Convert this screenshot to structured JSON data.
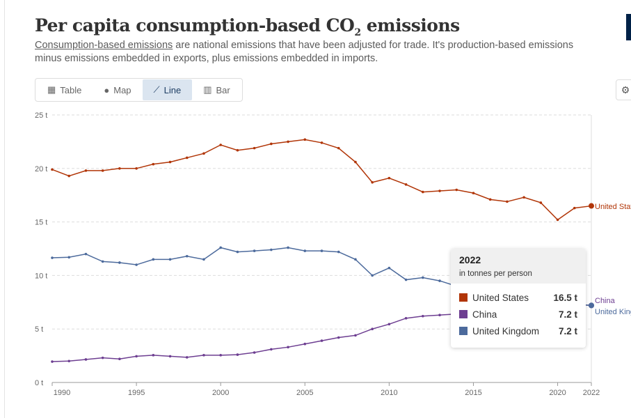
{
  "header": {
    "title_main": "Per capita consumption-based CO",
    "title_sub": "2",
    "title_end": " emissions",
    "subtitle_link": "Consumption-based emissions",
    "subtitle_rest": " are national emissions that have been adjusted for trade. It's production-based emissions minus emissions embedded in exports, plus emissions embedded in imports."
  },
  "tabs": [
    {
      "label": "Table",
      "icon": "table-icon"
    },
    {
      "label": "Map",
      "icon": "globe-icon"
    },
    {
      "label": "Line",
      "icon": "line-chart-icon",
      "active": true
    },
    {
      "label": "Bar",
      "icon": "bar-chart-icon"
    }
  ],
  "settings_icon": "gear-icon",
  "tooltip": {
    "year": "2022",
    "unit": "in tonnes per person",
    "rows": [
      {
        "name": "United States",
        "value": "16.5 t",
        "color": "#b13507"
      },
      {
        "name": "China",
        "value": "7.2 t",
        "color": "#6d3e91"
      },
      {
        "name": "United Kingdom",
        "value": "7.2 t",
        "color": "#4c6a9c"
      }
    ]
  },
  "chart_data": {
    "type": "line",
    "title": "Per capita consumption-based CO2 emissions",
    "ylabel": "",
    "xlabel": "",
    "ylim": [
      0,
      25
    ],
    "xlim": [
      1990,
      2022
    ],
    "grid": true,
    "unit": "t",
    "yticks": [
      "0 t",
      "5 t",
      "10 t",
      "15 t",
      "20 t",
      "25 t"
    ],
    "xticks": [
      "1990",
      "1995",
      "2000",
      "2005",
      "2010",
      "2015",
      "2020",
      "2022"
    ],
    "x": [
      1990,
      1991,
      1992,
      1993,
      1994,
      1995,
      1996,
      1997,
      1998,
      1999,
      2000,
      2001,
      2002,
      2003,
      2004,
      2005,
      2006,
      2007,
      2008,
      2009,
      2010,
      2011,
      2012,
      2013,
      2014,
      2015,
      2016,
      2017,
      2018,
      2019,
      2020,
      2021,
      2022
    ],
    "series": [
      {
        "name": "United States",
        "end_label": "United States",
        "color": "#b13507",
        "values": [
          19.9,
          19.3,
          19.8,
          19.8,
          20.0,
          20.0,
          20.4,
          20.6,
          21.0,
          21.4,
          22.2,
          21.7,
          21.9,
          22.3,
          22.5,
          22.7,
          22.4,
          21.9,
          20.6,
          18.7,
          19.1,
          18.5,
          17.8,
          17.9,
          18.0,
          17.7,
          17.1,
          16.9,
          17.3,
          16.8,
          15.2,
          16.3,
          16.5
        ]
      },
      {
        "name": "China",
        "end_label": "China",
        "color": "#6d3e91",
        "values": [
          1.95,
          2.0,
          2.15,
          2.3,
          2.2,
          2.45,
          2.55,
          2.45,
          2.35,
          2.55,
          2.55,
          2.6,
          2.8,
          3.1,
          3.3,
          3.6,
          3.9,
          4.2,
          4.4,
          5.0,
          5.45,
          6.0,
          6.2,
          6.3,
          6.4,
          6.4,
          6.5,
          6.7,
          6.9,
          7.0,
          7.1,
          7.3,
          7.2
        ]
      },
      {
        "name": "United Kingdom",
        "end_label": "United Kingdom",
        "color": "#4c6a9c",
        "values": [
          11.65,
          11.7,
          12.0,
          11.3,
          11.2,
          11.0,
          11.5,
          11.5,
          11.8,
          11.5,
          12.6,
          12.2,
          12.3,
          12.4,
          12.6,
          12.3,
          12.3,
          12.2,
          11.5,
          10.0,
          10.7,
          9.6,
          9.8,
          9.5,
          9.0,
          8.7,
          8.3,
          8.1,
          8.0,
          7.7,
          6.9,
          7.3,
          7.2
        ]
      }
    ]
  }
}
